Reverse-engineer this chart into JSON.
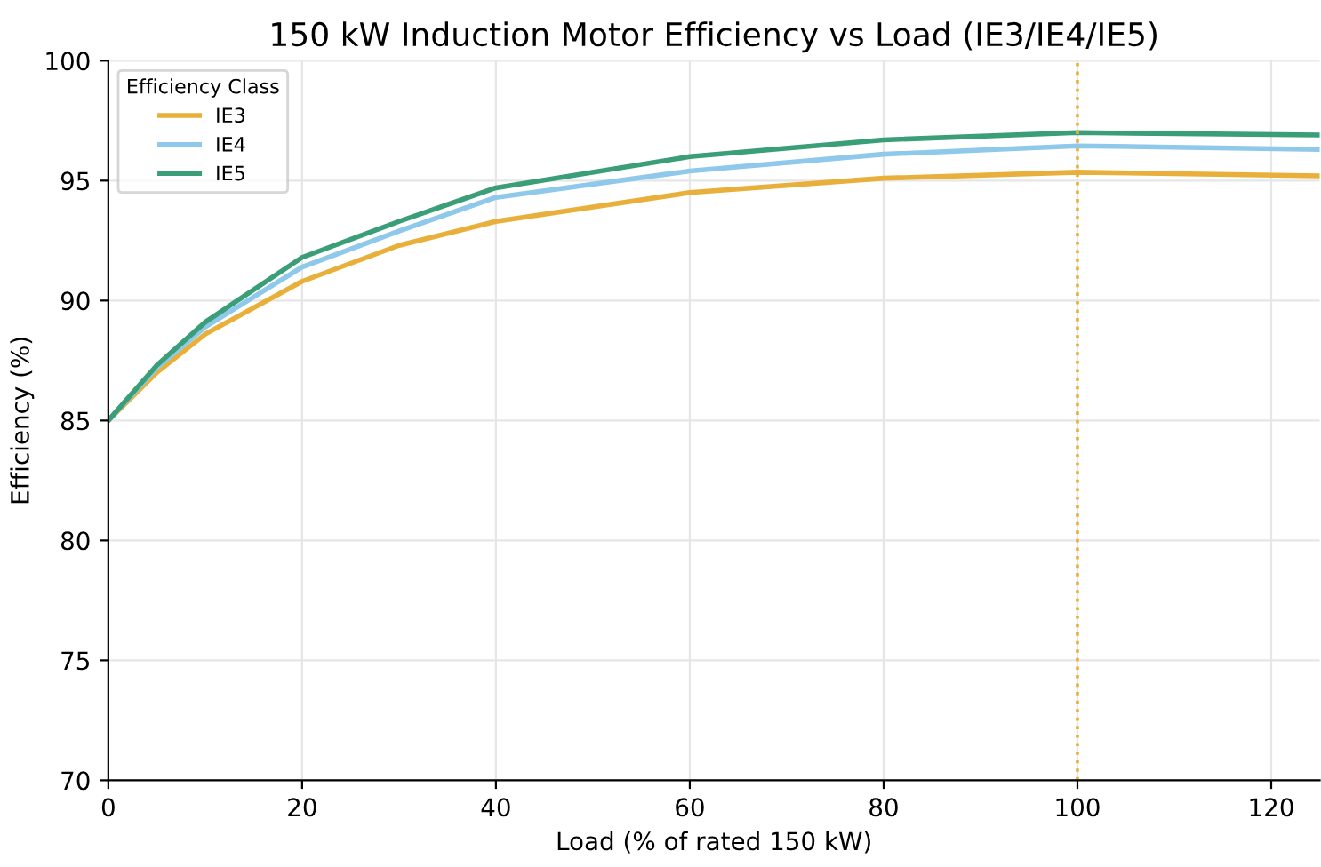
{
  "chart_data": {
    "type": "line",
    "title": "150 kW Induction Motor Efficiency vs Load (IE3/IE4/IE5)",
    "xlabel": "Load (% of rated 150 kW)",
    "ylabel": "Efficiency (%)",
    "legend_title": "Efficiency Class",
    "x": [
      0,
      5,
      10,
      20,
      30,
      40,
      60,
      80,
      100,
      125
    ],
    "series": [
      {
        "name": "IE3",
        "color": "#e8b03a",
        "values": [
          85,
          87.0,
          88.6,
          90.8,
          92.3,
          93.3,
          94.5,
          95.1,
          95.35,
          95.2
        ]
      },
      {
        "name": "IE4",
        "color": "#8ec8ea",
        "values": [
          85,
          87.2,
          88.9,
          91.4,
          92.9,
          94.3,
          95.4,
          96.1,
          96.45,
          96.3
        ]
      },
      {
        "name": "IE5",
        "color": "#3a9e78",
        "values": [
          85,
          87.3,
          89.1,
          91.8,
          93.3,
          94.7,
          96.0,
          96.7,
          97.0,
          96.9
        ]
      }
    ],
    "xlim": [
      0,
      125
    ],
    "ylim": [
      70,
      100
    ],
    "xticks": [
      0,
      20,
      40,
      60,
      80,
      100,
      120
    ],
    "yticks": [
      70,
      75,
      80,
      85,
      90,
      95,
      100
    ],
    "ref_lines": [
      {
        "axis": "x",
        "value": 100,
        "color": "#e8b03a",
        "line_style": "dotted"
      }
    ],
    "grid": true,
    "legend": "top left",
    "marker": "none",
    "line_style": "solid"
  }
}
